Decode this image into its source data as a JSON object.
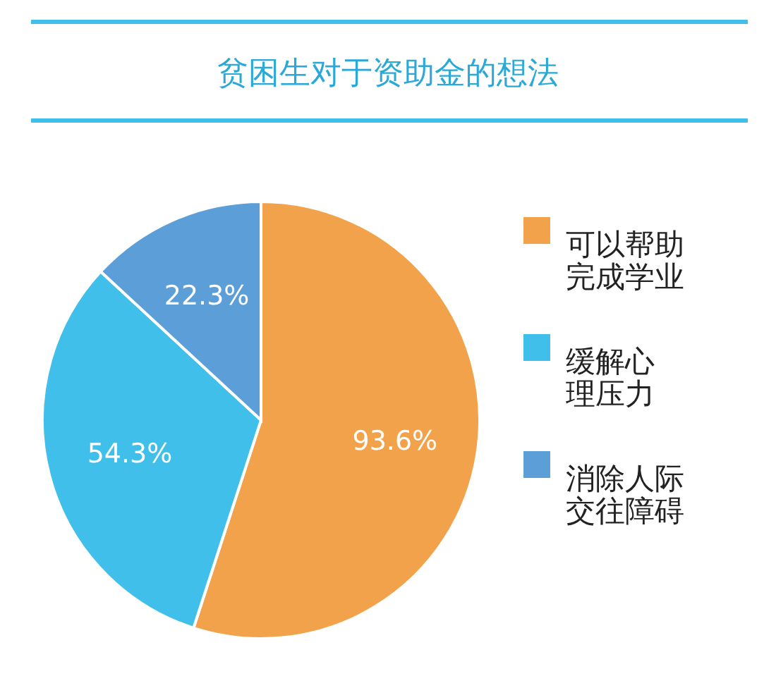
{
  "chart_data": {
    "type": "pie",
    "title": "贫困生对于资助金的想法",
    "categories": [
      "可以帮助完成学业",
      "缓解心理压力",
      "消除人际交往障碍"
    ],
    "values": [
      93.6,
      54.3,
      22.3
    ],
    "colors": [
      "#f2a24a",
      "#3fbfea",
      "#5c9fd8"
    ],
    "value_labels": [
      "93.6%",
      "54.3%",
      "22.3%"
    ],
    "legend": "right"
  }
}
